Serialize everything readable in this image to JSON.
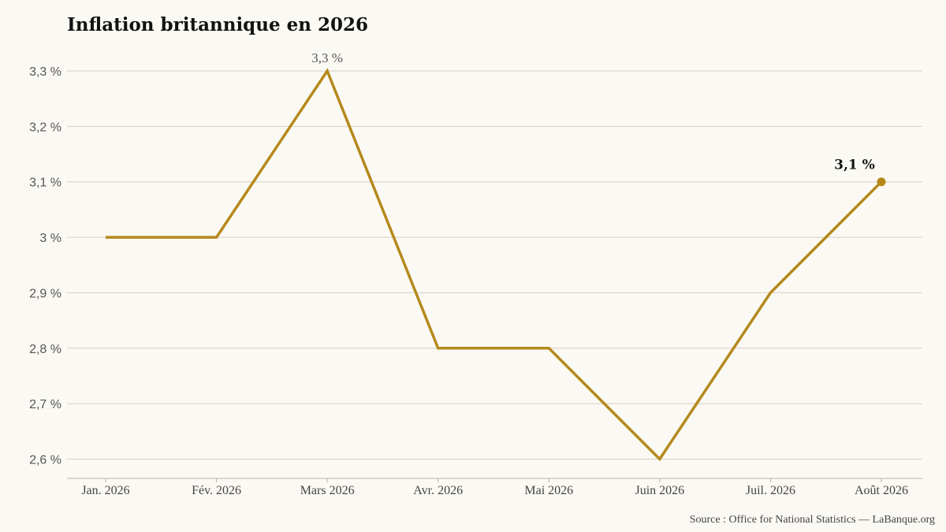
{
  "chart_data": {
    "type": "line",
    "title": "Inflation britannique en 2026",
    "categories": [
      "Jan. 2026",
      "Fév. 2026",
      "Mars 2026",
      "Avr. 2026",
      "Mai 2026",
      "Juin 2026",
      "Juil. 2026",
      "Août 2026"
    ],
    "series": [
      {
        "values": [
          3.0,
          3.0,
          3.3,
          2.8,
          2.8,
          2.6,
          2.9,
          3.1
        ]
      }
    ],
    "y_ticks": [
      2.6,
      2.7,
      2.8,
      2.9,
      3.0,
      3.1,
      3.2,
      3.3
    ],
    "y_tick_labels": [
      "2,6 %",
      "2,7 %",
      "2,8 %",
      "2,9 %",
      "3 %",
      "3,1 %",
      "3,2 %",
      "3,3 %"
    ],
    "ylim": [
      2.6,
      3.3
    ],
    "annotations": [
      {
        "index": 2,
        "text": "3,3 %",
        "style": "normal"
      },
      {
        "index": 7,
        "text": "3,1 %",
        "style": "bold",
        "marker": true
      }
    ],
    "grid": "horizontal",
    "colors": {
      "line": "#b5891c",
      "grid": "#d6d0c2",
      "axis": "#b8b2a4",
      "background": "#fbf9f3"
    }
  },
  "source": "Source : Office for National Statistics — LaBanque.org"
}
